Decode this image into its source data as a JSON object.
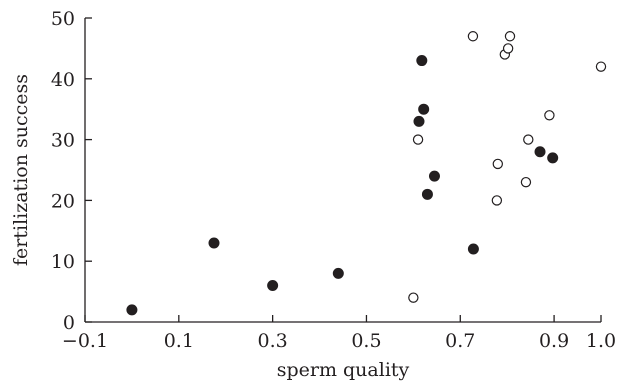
{
  "chart_data": {
    "type": "scatter",
    "title": "",
    "xlabel": "sperm quality",
    "ylabel": "fertilization success",
    "xlim": [
      -0.1,
      1.0
    ],
    "ylim": [
      0,
      50
    ],
    "x_ticks": [
      -0.1,
      0.1,
      0.3,
      0.5,
      0.7,
      0.9,
      1.0
    ],
    "x_tick_labels": [
      "−0.1",
      "0.1",
      "0.3",
      "0.5",
      "0.7",
      "0.9",
      "1.0"
    ],
    "y_ticks": [
      0,
      10,
      20,
      30,
      40,
      50
    ],
    "y_tick_labels": [
      "0",
      "10",
      "20",
      "30",
      "40",
      "50"
    ],
    "grid": false,
    "legend": "none",
    "series": [
      {
        "marker": "filled-circle",
        "color": "#231f20",
        "points": [
          {
            "x": 0.0,
            "y": 2
          },
          {
            "x": 0.175,
            "y": 13
          },
          {
            "x": 0.3,
            "y": 6
          },
          {
            "x": 0.44,
            "y": 8
          },
          {
            "x": 0.612,
            "y": 33
          },
          {
            "x": 0.618,
            "y": 43
          },
          {
            "x": 0.622,
            "y": 35
          },
          {
            "x": 0.63,
            "y": 21
          },
          {
            "x": 0.645,
            "y": 24
          },
          {
            "x": 0.728,
            "y": 12
          },
          {
            "x": 0.87,
            "y": 28
          },
          {
            "x": 0.897,
            "y": 27
          }
        ]
      },
      {
        "marker": "open-circle",
        "color": "#231f20",
        "points": [
          {
            "x": 0.6,
            "y": 4
          },
          {
            "x": 0.61,
            "y": 30
          },
          {
            "x": 0.727,
            "y": 47
          },
          {
            "x": 0.778,
            "y": 20
          },
          {
            "x": 0.78,
            "y": 26
          },
          {
            "x": 0.795,
            "y": 44
          },
          {
            "x": 0.802,
            "y": 45
          },
          {
            "x": 0.806,
            "y": 47
          },
          {
            "x": 0.84,
            "y": 23
          },
          {
            "x": 0.845,
            "y": 30
          },
          {
            "x": 0.89,
            "y": 34
          },
          {
            "x": 1.0,
            "y": 42
          }
        ]
      }
    ]
  }
}
